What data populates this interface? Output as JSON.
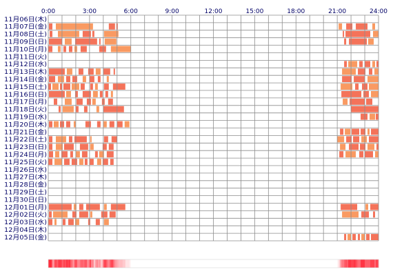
{
  "chart_data": {
    "type": "heatmap",
    "x_unit": "hour",
    "x_range": [
      0,
      24
    ],
    "grid_step_hours": 1,
    "x_ticks": [
      "0:00",
      "3:00",
      "6:00",
      "9:00",
      "12:00",
      "15:00",
      "18:00",
      "21:00",
      "24:00"
    ],
    "colors": {
      "active": "#f4735a",
      "active_light": "#f99a62",
      "grid": "#8c8c8c",
      "tick_text": "#000066"
    },
    "rows": [
      {
        "date": "11月06日(木)",
        "segments": []
      },
      {
        "date": "11月07日(金)",
        "segments": [
          [
            0.05,
            0.3
          ],
          [
            0.55,
            3.25
          ],
          [
            4.4,
            4.85
          ],
          [
            4.95,
            5.05
          ],
          [
            21.1,
            21.35
          ],
          [
            21.65,
            22.1
          ],
          [
            22.35,
            23.2
          ],
          [
            23.55,
            23.75
          ]
        ]
      },
      {
        "date": "11月08日(土)",
        "segments": [
          [
            0.1,
            0.3
          ],
          [
            0.7,
            2.25
          ],
          [
            2.5,
            3.1
          ],
          [
            3.2,
            3.35
          ],
          [
            4.05,
            5.1
          ],
          [
            21.4,
            21.5
          ],
          [
            21.6,
            23.4
          ],
          [
            23.6,
            24.0
          ]
        ]
      },
      {
        "date": "11月09日(日)",
        "segments": [
          [
            0.05,
            1.0
          ],
          [
            1.2,
            1.7
          ],
          [
            1.95,
            3.55
          ],
          [
            3.7,
            3.8
          ],
          [
            4.1,
            4.95
          ],
          [
            21.5,
            21.65
          ],
          [
            21.85,
            23.15
          ],
          [
            23.25,
            23.65
          ]
        ]
      },
      {
        "date": "11月10日(月)",
        "segments": [
          [
            0.0,
            0.3
          ],
          [
            0.7,
            0.9
          ],
          [
            1.1,
            1.3
          ],
          [
            1.5,
            1.75
          ],
          [
            1.9,
            2.1
          ],
          [
            2.35,
            2.8
          ],
          [
            3.7,
            4.2
          ],
          [
            4.55,
            6.0
          ]
        ]
      },
      {
        "date": "11月11日(火)",
        "segments": []
      },
      {
        "date": "11月12日(水)",
        "segments": [
          [
            21.5,
            21.7
          ],
          [
            21.8,
            22.45
          ],
          [
            22.6,
            22.85
          ],
          [
            23.0,
            23.4
          ],
          [
            23.55,
            23.75
          ],
          [
            23.85,
            24.0
          ]
        ]
      },
      {
        "date": "11月13日(木)",
        "segments": [
          [
            0.05,
            1.2
          ],
          [
            1.35,
            1.75
          ],
          [
            2.2,
            2.55
          ],
          [
            2.9,
            3.3
          ],
          [
            3.45,
            3.8
          ],
          [
            4.0,
            4.5
          ],
          [
            4.75,
            4.85
          ],
          [
            21.35,
            22.35
          ],
          [
            22.5,
            23.05
          ],
          [
            23.3,
            23.55
          ],
          [
            23.7,
            24.0
          ]
        ]
      },
      {
        "date": "11月14日(金)",
        "segments": [
          [
            0.05,
            0.5
          ],
          [
            0.7,
            1.15
          ],
          [
            1.3,
            1.6
          ],
          [
            1.75,
            2.1
          ],
          [
            2.5,
            2.75
          ],
          [
            3.0,
            3.35
          ],
          [
            3.6,
            3.8
          ],
          [
            4.25,
            4.4
          ],
          [
            21.35,
            22.05
          ],
          [
            22.2,
            23.0
          ],
          [
            23.2,
            24.0
          ]
        ]
      },
      {
        "date": "11月15日(土)",
        "segments": [
          [
            0.0,
            0.2
          ],
          [
            0.3,
            0.75
          ],
          [
            0.85,
            1.0
          ],
          [
            1.1,
            1.6
          ],
          [
            1.7,
            2.25
          ],
          [
            2.35,
            2.65
          ],
          [
            3.05,
            3.25
          ],
          [
            3.4,
            3.6
          ],
          [
            4.05,
            4.4
          ],
          [
            4.7,
            5.6
          ],
          [
            21.25,
            22.1
          ],
          [
            22.3,
            22.55
          ],
          [
            22.8,
            23.2
          ],
          [
            23.3,
            24.0
          ]
        ]
      },
      {
        "date": "11月16日(日)",
        "segments": [
          [
            0.05,
            1.2
          ],
          [
            1.3,
            1.65
          ],
          [
            1.95,
            2.15
          ],
          [
            2.5,
            3.1
          ],
          [
            3.25,
            3.6
          ],
          [
            3.75,
            3.95
          ],
          [
            4.15,
            4.35
          ],
          [
            4.55,
            4.7
          ],
          [
            21.3,
            22.75
          ],
          [
            22.9,
            23.3
          ],
          [
            23.45,
            24.0
          ]
        ]
      },
      {
        "date": "11月17日(月)",
        "segments": [
          [
            0.4,
            0.65
          ],
          [
            1.2,
            1.7
          ],
          [
            2.05,
            2.5
          ],
          [
            2.8,
            3.1
          ],
          [
            3.2,
            3.45
          ],
          [
            3.9,
            4.1
          ],
          [
            4.35,
            4.7
          ],
          [
            21.4,
            21.75
          ],
          [
            21.9,
            23.0
          ],
          [
            23.1,
            23.55
          ]
        ]
      },
      {
        "date": "11月18日(火)",
        "segments": [
          [
            0.75,
            0.9
          ],
          [
            1.05,
            1.85
          ],
          [
            2.0,
            2.2
          ],
          [
            2.6,
            2.85
          ],
          [
            3.5,
            3.7
          ],
          [
            4.0,
            5.5
          ],
          [
            22.0,
            24.0
          ]
        ]
      },
      {
        "date": "11月19日(水)",
        "segments": [
          [
            22.7,
            23.2
          ],
          [
            23.35,
            23.75
          ],
          [
            23.8,
            24.0
          ]
        ]
      },
      {
        "date": "11月20日(木)",
        "segments": [
          [
            0.05,
            0.3
          ],
          [
            0.4,
            0.75
          ],
          [
            0.85,
            1.15
          ],
          [
            1.3,
            1.6
          ],
          [
            1.85,
            2.0
          ],
          [
            2.7,
            3.1
          ],
          [
            3.55,
            3.8
          ],
          [
            4.0,
            4.25
          ],
          [
            4.45,
            4.8
          ],
          [
            5.0,
            5.4
          ],
          [
            5.55,
            5.9
          ]
        ]
      },
      {
        "date": "11月21日(金)",
        "segments": [
          [
            21.2,
            21.45
          ],
          [
            21.55,
            21.95
          ],
          [
            22.05,
            22.6
          ],
          [
            22.7,
            23.05
          ],
          [
            23.2,
            23.35
          ],
          [
            23.45,
            24.0
          ]
        ]
      },
      {
        "date": "11月22日(土)",
        "segments": [
          [
            0.05,
            0.3
          ],
          [
            0.55,
            1.3
          ],
          [
            1.5,
            1.75
          ],
          [
            1.9,
            2.8
          ],
          [
            3.05,
            3.15
          ],
          [
            4.05,
            4.35
          ],
          [
            4.6,
            5.0
          ],
          [
            21.0,
            21.5
          ],
          [
            21.65,
            22.05
          ],
          [
            22.15,
            22.6
          ],
          [
            22.75,
            23.15
          ],
          [
            23.3,
            24.0
          ]
        ]
      },
      {
        "date": "11月23日(日)",
        "segments": [
          [
            0.05,
            0.3
          ],
          [
            0.55,
            1.05
          ],
          [
            1.15,
            1.85
          ],
          [
            2.3,
            2.9
          ],
          [
            3.05,
            3.3
          ],
          [
            3.95,
            4.25
          ],
          [
            4.4,
            4.75
          ],
          [
            21.2,
            21.6
          ],
          [
            21.85,
            22.55
          ],
          [
            22.65,
            23.05
          ],
          [
            23.2,
            23.7
          ],
          [
            23.85,
            24.0
          ]
        ]
      },
      {
        "date": "11月24日(月)",
        "segments": [
          [
            0.05,
            0.35
          ],
          [
            0.5,
            0.8
          ],
          [
            0.95,
            1.4
          ],
          [
            1.6,
            1.8
          ],
          [
            2.0,
            2.3
          ],
          [
            2.45,
            2.85
          ],
          [
            3.4,
            3.6
          ],
          [
            3.7,
            4.05
          ],
          [
            4.25,
            4.75
          ],
          [
            21.15,
            21.45
          ],
          [
            21.6,
            22.35
          ],
          [
            22.6,
            22.9
          ],
          [
            23.0,
            23.6
          ],
          [
            23.75,
            24.0
          ]
        ]
      },
      {
        "date": "11月25日(火)",
        "segments": [
          [
            0.0,
            0.3
          ],
          [
            0.45,
            1.0
          ],
          [
            1.15,
            1.55
          ],
          [
            1.7,
            2.1
          ],
          [
            2.25,
            2.55
          ],
          [
            2.65,
            2.85
          ],
          [
            3.0,
            3.3
          ],
          [
            3.55,
            3.85
          ],
          [
            3.95,
            4.35
          ],
          [
            4.5,
            4.75
          ]
        ]
      },
      {
        "date": "11月26日(水)",
        "segments": []
      },
      {
        "date": "11月27日(木)",
        "segments": []
      },
      {
        "date": "11月28日(金)",
        "segments": []
      },
      {
        "date": "11月29日(土)",
        "segments": []
      },
      {
        "date": "11月30日(日)",
        "segments": []
      },
      {
        "date": "12月01日(月)",
        "segments": [
          [
            0.05,
            1.7
          ],
          [
            1.85,
            2.05
          ],
          [
            2.25,
            2.55
          ],
          [
            2.75,
            3.75
          ],
          [
            4.05,
            4.25
          ],
          [
            4.55,
            5.6
          ],
          [
            21.25,
            22.45
          ],
          [
            23.05,
            23.25
          ],
          [
            23.4,
            24.0
          ]
        ]
      },
      {
        "date": "12月02日(火)",
        "segments": [
          [
            0.05,
            0.25
          ],
          [
            0.35,
            1.4
          ],
          [
            1.75,
            2.05
          ],
          [
            2.25,
            2.9
          ],
          [
            3.05,
            3.2
          ],
          [
            3.85,
            4.3
          ],
          [
            4.45,
            4.9
          ],
          [
            21.35,
            22.55
          ],
          [
            22.75,
            23.3
          ],
          [
            23.6,
            23.75
          ]
        ]
      },
      {
        "date": "12月03日(水)",
        "segments": [
          [
            0.0,
            0.3
          ],
          [
            0.45,
            0.6
          ],
          [
            1.05,
            1.25
          ],
          [
            1.45,
            1.85
          ],
          [
            1.95,
            2.25
          ],
          [
            2.9,
            3.05
          ],
          [
            3.45,
            3.75
          ],
          [
            4.05,
            4.4
          ]
        ]
      },
      {
        "date": "12月04日(木)",
        "segments": []
      },
      {
        "date": "12月05日(金)",
        "segments": [
          [
            21.5,
            21.65
          ],
          [
            21.75,
            22.0
          ],
          [
            22.1,
            22.35
          ],
          [
            22.5,
            22.65
          ],
          [
            22.75,
            23.0
          ],
          [
            23.1,
            23.35
          ],
          [
            23.45,
            24.0
          ]
        ]
      }
    ],
    "activity_summary": "gradient bar below the grid: intensity peaks near 0:00–3:00 and 21:00–24:00, fades by 6:00, blank from ~7:00 to ~20:30"
  }
}
